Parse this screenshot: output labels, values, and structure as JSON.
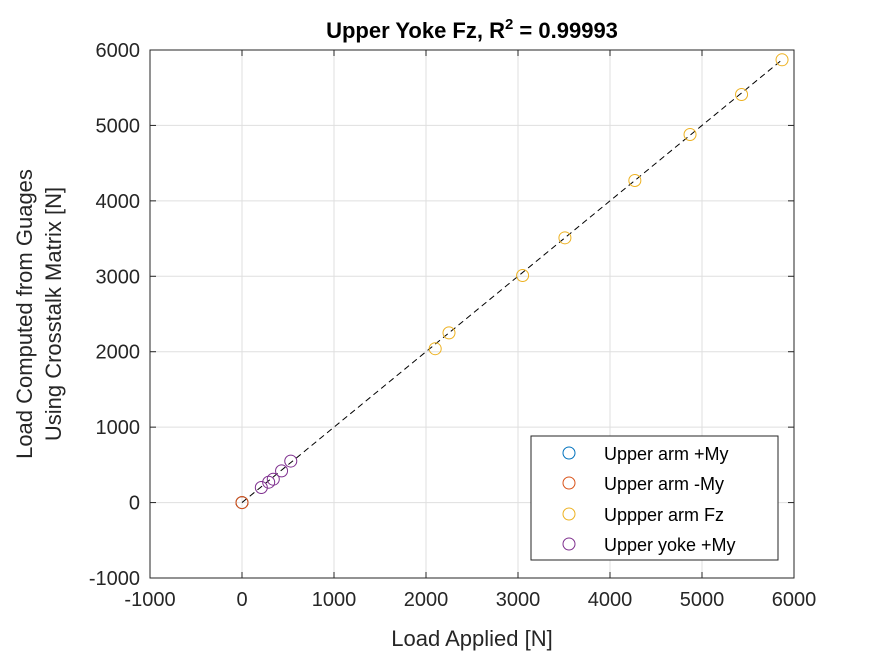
{
  "chart_data": {
    "type": "scatter",
    "title": "Upper Yoke Fz, R",
    "title_sup": "2",
    "title_suffix": " = 0.99993",
    "xlabel": "Load Applied [N]",
    "ylabel_lines": [
      "Load Computed from Guages",
      "Using Crosstalk Matrix [N]"
    ],
    "xlim": [
      -1000,
      6000
    ],
    "ylim": [
      -1000,
      6000
    ],
    "xticks": [
      -1000,
      0,
      1000,
      2000,
      3000,
      4000,
      5000,
      6000
    ],
    "yticks": [
      -1000,
      0,
      1000,
      2000,
      3000,
      4000,
      5000,
      6000
    ],
    "xtick_labels": [
      "-1000",
      "0",
      "1000",
      "2000",
      "3000",
      "4000",
      "5000",
      "6000"
    ],
    "ytick_labels": [
      "-1000",
      "0",
      "1000",
      "2000",
      "3000",
      "4000",
      "5000",
      "6000"
    ],
    "grid": true,
    "legend_position": "bottom-right",
    "fit_line": {
      "style": "dashed",
      "color": "#000000",
      "x": [
        0,
        5870
      ],
      "y": [
        0,
        5870
      ]
    },
    "series": [
      {
        "name": "Upper arm +My",
        "color": "#0072BD",
        "x": [
          0,
          0
        ],
        "y": [
          0,
          0
        ]
      },
      {
        "name": "Upper arm -My",
        "color": "#D95319",
        "x": [
          0,
          0
        ],
        "y": [
          0,
          0
        ]
      },
      {
        "name": "Uppper arm Fz",
        "color": "#EDB120",
        "x": [
          2100,
          2250,
          3050,
          3510,
          4270,
          4870,
          5430,
          5870
        ],
        "y": [
          2040,
          2250,
          3010,
          3510,
          4270,
          4880,
          5410,
          5870
        ]
      },
      {
        "name": "Upper yoke +My",
        "color": "#7E2F8E",
        "x": [
          210,
          290,
          340,
          430,
          530
        ],
        "y": [
          200,
          270,
          310,
          420,
          550
        ]
      }
    ]
  }
}
